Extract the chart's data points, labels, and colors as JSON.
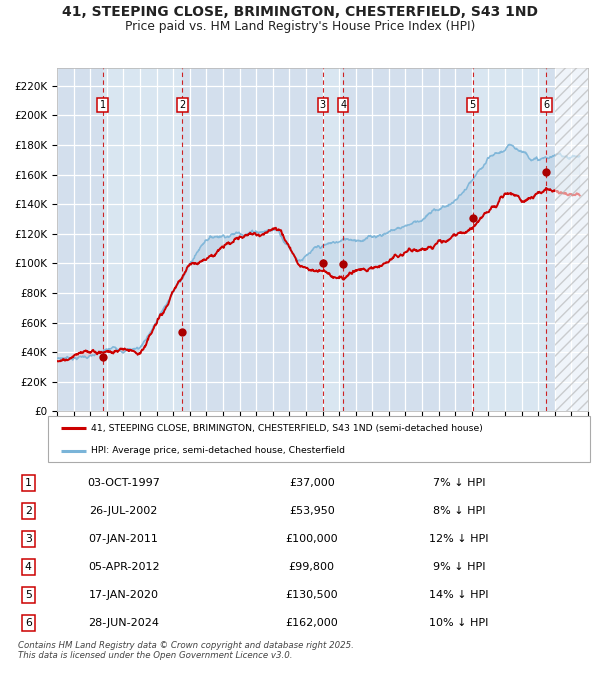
{
  "title_line1": "41, STEEPING CLOSE, BRIMINGTON, CHESTERFIELD, S43 1ND",
  "title_line2": "Price paid vs. HM Land Registry's House Price Index (HPI)",
  "ylabel_ticks": [
    "£0",
    "£20K",
    "£40K",
    "£60K",
    "£80K",
    "£100K",
    "£120K",
    "£140K",
    "£160K",
    "£180K",
    "£200K",
    "£220K"
  ],
  "ytick_values": [
    0,
    20000,
    40000,
    60000,
    80000,
    100000,
    120000,
    140000,
    160000,
    180000,
    200000,
    220000
  ],
  "ylim": [
    0,
    232000
  ],
  "xlim_start": 1995.0,
  "xlim_end": 2027.0,
  "xtick_years": [
    1995,
    1996,
    1997,
    1998,
    1999,
    2000,
    2001,
    2002,
    2003,
    2004,
    2005,
    2006,
    2007,
    2008,
    2009,
    2010,
    2011,
    2012,
    2013,
    2014,
    2015,
    2016,
    2017,
    2018,
    2019,
    2020,
    2021,
    2022,
    2023,
    2024,
    2025,
    2026,
    2027
  ],
  "plot_bg_color": "#dce8f4",
  "grid_color": "#ffffff",
  "hpi_line_color": "#7ab4d8",
  "price_line_color": "#cc0000",
  "sale_marker_color": "#aa0000",
  "vline_color": "#cc0000",
  "transactions": [
    {
      "num": 1,
      "date_x": 1997.75,
      "price": 37000
    },
    {
      "num": 2,
      "date_x": 2002.55,
      "price": 53950
    },
    {
      "num": 3,
      "date_x": 2011.02,
      "price": 100000
    },
    {
      "num": 4,
      "date_x": 2012.25,
      "price": 99800
    },
    {
      "num": 5,
      "date_x": 2020.04,
      "price": 130500
    },
    {
      "num": 6,
      "date_x": 2024.49,
      "price": 162000
    }
  ],
  "shade_pairs": [
    [
      1995.0,
      1997.75
    ],
    [
      1997.75,
      2002.55
    ],
    [
      2002.55,
      2011.02
    ],
    [
      2011.02,
      2012.25
    ],
    [
      2012.25,
      2020.04
    ],
    [
      2020.04,
      2024.49
    ],
    [
      2024.49,
      2025.0
    ]
  ],
  "legend_line1": "41, STEEPING CLOSE, BRIMINGTON, CHESTERFIELD, S43 1ND (semi-detached house)",
  "legend_line2": "HPI: Average price, semi-detached house, Chesterfield",
  "table_rows": [
    {
      "num": 1,
      "date": "03-OCT-1997",
      "price": "£37,000",
      "pct": "7% ↓ HPI"
    },
    {
      "num": 2,
      "date": "26-JUL-2002",
      "price": "£53,950",
      "pct": "8% ↓ HPI"
    },
    {
      "num": 3,
      "date": "07-JAN-2011",
      "price": "£100,000",
      "pct": "12% ↓ HPI"
    },
    {
      "num": 4,
      "date": "05-APR-2012",
      "price": "£99,800",
      "pct": "9% ↓ HPI"
    },
    {
      "num": 5,
      "date": "17-JAN-2020",
      "price": "£130,500",
      "pct": "14% ↓ HPI"
    },
    {
      "num": 6,
      "date": "28-JUN-2024",
      "price": "£162,000",
      "pct": "10% ↓ HPI"
    }
  ],
  "footnote": "Contains HM Land Registry data © Crown copyright and database right 2025.\nThis data is licensed under the Open Government Licence v3.0.",
  "hatch_region_start": 2025.0,
  "hatch_region_end": 2027.0
}
